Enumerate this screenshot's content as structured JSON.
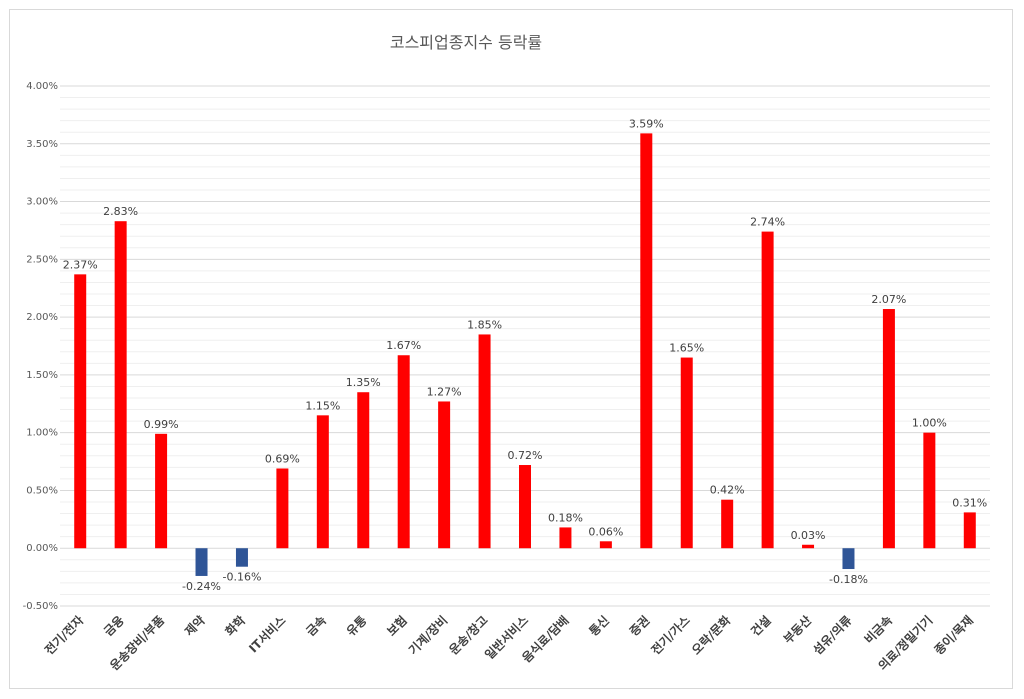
{
  "chart_data": {
    "type": "bar",
    "title": "코스피업종지수 등락률",
    "categories": [
      "전기/전자",
      "금융",
      "운송장비/부품",
      "제약",
      "화학",
      "IT서비스",
      "금속",
      "유통",
      "보험",
      "기계/장비",
      "운송/창고",
      "일반서비스",
      "음식료/담배",
      "통신",
      "증권",
      "전기/가스",
      "오락/문화",
      "건설",
      "부동산",
      "섬유/의류",
      "비금속",
      "의료/정밀기기",
      "종이/목재"
    ],
    "values": [
      2.37,
      2.83,
      0.99,
      -0.24,
      -0.16,
      0.69,
      1.15,
      1.35,
      1.67,
      1.27,
      1.85,
      0.72,
      0.18,
      0.06,
      3.59,
      1.65,
      0.42,
      2.74,
      0.03,
      -0.18,
      2.07,
      1.0,
      0.31
    ],
    "data_labels": [
      "2.37%",
      "2.83%",
      "0.99%",
      "-0.24%",
      "-0.16%",
      "0.69%",
      "1.15%",
      "1.35%",
      "1.67%",
      "1.27%",
      "1.85%",
      "0.72%",
      "0.18%",
      "0.06%",
      "3.59%",
      "1.65%",
      "0.42%",
      "2.74%",
      "0.03%",
      "-0.18%",
      "2.07%",
      "1.00%",
      "0.31%"
    ],
    "y_ticks": [
      "-0.50%",
      "0.00%",
      "0.50%",
      "1.00%",
      "1.50%",
      "2.00%",
      "2.50%",
      "3.00%",
      "3.50%",
      "4.00%"
    ],
    "ylim": [
      -0.5,
      4.0
    ],
    "grid": true,
    "colors": {
      "positive": "#ff0000",
      "negative": "#2f5597",
      "grid": "#d9d9d9",
      "axis_text": "#595959"
    }
  }
}
